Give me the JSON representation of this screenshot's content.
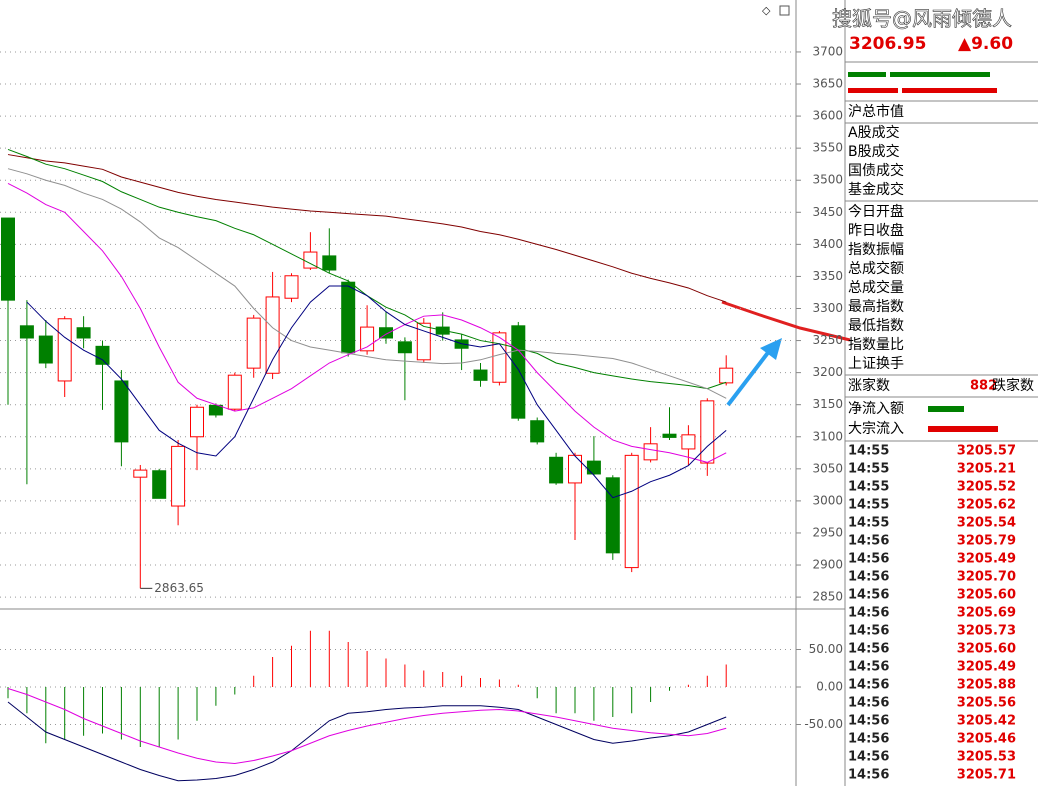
{
  "chart_data": [
    {
      "type": "candlestick",
      "categories": [
        null,
        null,
        null,
        null,
        null,
        null,
        null,
        null,
        null,
        null,
        null,
        null,
        null,
        null,
        null,
        null,
        null,
        null,
        null,
        null,
        null,
        null,
        null,
        null,
        null,
        null,
        null,
        null,
        null,
        null,
        null,
        null,
        null,
        null,
        null,
        null,
        null,
        null,
        null
      ],
      "open": [
        3441,
        3273,
        3257,
        3187,
        3270,
        3241,
        3187,
        3037,
        3047,
        2992,
        3100,
        3149,
        3143,
        3207,
        3199,
        3316,
        3363,
        3382,
        3341,
        3234,
        3270,
        3248,
        3220,
        3271,
        3251,
        3204,
        3185,
        3273,
        3125,
        3068,
        3028,
        3062,
        3036,
        2896,
        3064,
        3104,
        3081,
        3059,
        3184
      ],
      "high": [
        3441,
        3313,
        3282,
        3288,
        3288,
        3250,
        3204,
        3056,
        3050,
        3095,
        3150,
        3152,
        3200,
        3290,
        3357,
        3355,
        3419,
        3425,
        3345,
        3305,
        3295,
        3255,
        3285,
        3294,
        3260,
        3215,
        3265,
        3279,
        3130,
        3075,
        3075,
        3101,
        3040,
        3075,
        3115,
        3146,
        3118,
        3160,
        3227
      ],
      "low": [
        3150,
        3026,
        3207,
        3162,
        3238,
        3142,
        3054,
        2863.65,
        3004,
        2962,
        3048,
        3130,
        3140,
        3192,
        3190,
        3310,
        3360,
        3355,
        3225,
        3228,
        3245,
        3157,
        3215,
        3250,
        3204,
        3178,
        3180,
        3125,
        3088,
        3025,
        2939,
        3040,
        2908,
        2889,
        3060,
        3095,
        3056,
        3039,
        3180
      ],
      "close": [
        3313,
        3254,
        3215,
        3284,
        3254,
        3213,
        3092,
        3048,
        3004,
        3085,
        3146,
        3134,
        3196,
        3285,
        3318,
        3351,
        3388,
        3360,
        3231,
        3271,
        3254,
        3231,
        3277,
        3260,
        3238,
        3188,
        3262,
        3129,
        3092,
        3028,
        3071,
        3042,
        2919,
        3071,
        3089,
        3099,
        3103,
        3156,
        3206.95
      ],
      "up_color": "#ff0000",
      "down_color": "#008000",
      "series": [
        {
          "color": "#800000",
          "values": [
            3540,
            3535,
            3530,
            3527,
            3522,
            3517,
            3505,
            3497,
            3489,
            3481,
            3475,
            3470,
            3466,
            3462,
            3458,
            3455,
            3452,
            3450,
            3448,
            3446,
            3444,
            3440,
            3436,
            3432,
            3427,
            3420,
            3415,
            3408,
            3400,
            3392,
            3383,
            3374,
            3365,
            3355,
            3347,
            3340,
            3332,
            3320,
            3310
          ]
        },
        {
          "color": "#008000",
          "values": [
            3548,
            3537,
            3525,
            3518,
            3508,
            3498,
            3482,
            3470,
            3458,
            3450,
            3443,
            3437,
            3425,
            3415,
            3400,
            3385,
            3370,
            3355,
            3343,
            3320,
            3302,
            3290,
            3272,
            3266,
            3260,
            3250,
            3245,
            3238,
            3230,
            3215,
            3208,
            3200,
            3195,
            3190,
            3186,
            3183,
            3180,
            3175,
            3185
          ]
        },
        {
          "color": "#909090",
          "values": [
            3518,
            3510,
            3500,
            3492,
            3480,
            3470,
            3455,
            3435,
            3410,
            3395,
            3375,
            3355,
            3335,
            3300,
            3270,
            3250,
            3240,
            3235,
            3230,
            3225,
            3220,
            3218,
            3216,
            3214,
            3215,
            3220,
            3228,
            3235,
            3233,
            3230,
            3228,
            3225,
            3222,
            3215,
            3205,
            3195,
            3185,
            3175,
            3160
          ]
        },
        {
          "color": "#e000e0",
          "values": [
            3495,
            3480,
            3462,
            3450,
            3420,
            3390,
            3350,
            3300,
            3240,
            3185,
            3160,
            3150,
            3140,
            3145,
            3160,
            3175,
            3195,
            3215,
            3228,
            3240,
            3260,
            3275,
            3288,
            3290,
            3282,
            3270,
            3255,
            3235,
            3200,
            3170,
            3140,
            3115,
            3095,
            3085,
            3080,
            3075,
            3068,
            3060,
            3075
          ]
        },
        {
          "color": "#000080",
          "values": [
            null,
            3310,
            3280,
            3255,
            3235,
            3220,
            3190,
            3150,
            3110,
            3090,
            3075,
            3070,
            3100,
            3160,
            3220,
            3270,
            3310,
            3335,
            3335,
            3320,
            3295,
            3275,
            3265,
            3255,
            3245,
            3240,
            3245,
            3205,
            3150,
            3110,
            3070,
            3040,
            3005,
            3015,
            3030,
            3040,
            3055,
            3085,
            3110
          ]
        }
      ],
      "ylim": [
        2833,
        3781
      ],
      "yticks": [
        2850,
        2900,
        2950,
        3000,
        3050,
        3100,
        3150,
        3200,
        3250,
        3300,
        3350,
        3400,
        3450,
        3500,
        3550,
        3600,
        3650,
        3700
      ],
      "grid": true
    },
    {
      "type": "macd",
      "categories": [
        null,
        null,
        null,
        null,
        null,
        null,
        null,
        null,
        null,
        null,
        null,
        null,
        null,
        null,
        null,
        null,
        null,
        null,
        null,
        null,
        null,
        null,
        null,
        null,
        null,
        null,
        null,
        null,
        null,
        null,
        null,
        null,
        null,
        null,
        null,
        null,
        null,
        null,
        null
      ],
      "values": [
        -15,
        -35,
        -75,
        -70,
        -65,
        -62,
        -70,
        -80,
        -80,
        -70,
        -45,
        -25,
        -10,
        15,
        40,
        55,
        75,
        75,
        60,
        48,
        38,
        30,
        22,
        20,
        15,
        12,
        10,
        3,
        -15,
        -35,
        -35,
        -45,
        -40,
        -35,
        -20,
        -5,
        3,
        15,
        30
      ],
      "up_color": "#ff0000",
      "down_color": "#008000",
      "series": [
        {
          "color": "#000060",
          "values": [
            -20,
            -40,
            -60,
            -70,
            -80,
            -90,
            -100,
            -110,
            -118,
            -125,
            -124,
            -122,
            -118,
            -110,
            -100,
            -85,
            -65,
            -45,
            -35,
            -33,
            -30,
            -28,
            -27,
            -25,
            -25,
            -25,
            -27,
            -30,
            -40,
            -50,
            -60,
            -70,
            -75,
            -72,
            -68,
            -65,
            -60,
            -50,
            -40
          ]
        },
        {
          "color": "#e000e0",
          "values": [
            -2,
            -10,
            -20,
            -30,
            -42,
            -52,
            -62,
            -72,
            -80,
            -88,
            -95,
            -100,
            -102,
            -98,
            -92,
            -85,
            -75,
            -65,
            -58,
            -52,
            -47,
            -42,
            -38,
            -35,
            -33,
            -31,
            -30,
            -32,
            -36,
            -40,
            -45,
            -50,
            -55,
            -58,
            -61,
            -63,
            -65,
            -62,
            -55
          ]
        }
      ],
      "ylim": [
        -132,
        100
      ],
      "yticks": [
        {
          "value": 50,
          "label": "50.00"
        },
        {
          "value": 0,
          "label": "0.00"
        },
        {
          "value": -50,
          "label": "-50.00"
        }
      ],
      "grid": true
    }
  ],
  "side_panel": {
    "watermark": "搜狐号@风雨倾德人",
    "price": "3206.95",
    "change": "▲9.60",
    "labels": [
      "沪总市值",
      "A股成交",
      "B股成交",
      "国债成交",
      "基金成交",
      "今日开盘",
      "昨日收盘",
      "指数振幅",
      "总成交额",
      "总成交量",
      "最高指数",
      "最低指数",
      "指数量比",
      "上证换手"
    ],
    "up_label": "涨家数",
    "up_count": "882",
    "down_label": "跌家数",
    "flow_labels": [
      "净流入额",
      "大宗流入"
    ],
    "ticks": [
      {
        "time": "14:55",
        "price": "3205.57"
      },
      {
        "time": "14:55",
        "price": "3205.21"
      },
      {
        "time": "14:55",
        "price": "3205.52"
      },
      {
        "time": "14:55",
        "price": "3205.62"
      },
      {
        "time": "14:55",
        "price": "3205.54"
      },
      {
        "time": "14:56",
        "price": "3205.79"
      },
      {
        "time": "14:56",
        "price": "3205.49"
      },
      {
        "time": "14:56",
        "price": "3205.70"
      },
      {
        "time": "14:56",
        "price": "3205.60"
      },
      {
        "time": "14:56",
        "price": "3205.69"
      },
      {
        "time": "14:56",
        "price": "3205.73"
      },
      {
        "time": "14:56",
        "price": "3205.60"
      },
      {
        "time": "14:56",
        "price": "3205.49"
      },
      {
        "time": "14:56",
        "price": "3205.88"
      },
      {
        "time": "14:56",
        "price": "3205.56"
      },
      {
        "time": "14:56",
        "price": "3205.42"
      },
      {
        "time": "14:56",
        "price": "3205.46"
      },
      {
        "time": "14:56",
        "price": "3205.53"
      },
      {
        "time": "14:56",
        "price": "3205.71"
      }
    ]
  }
}
